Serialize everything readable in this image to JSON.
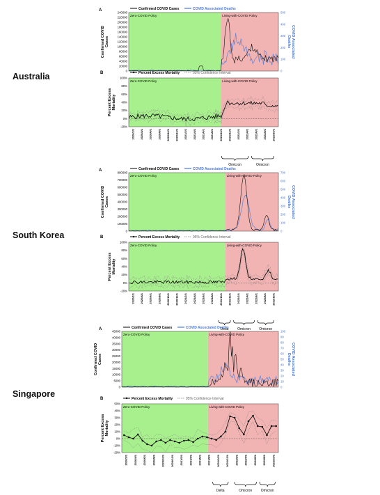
{
  "countries": [
    {
      "name": "Australia",
      "cases_panel": {
        "letter": "A",
        "legend": [
          "Confirmed COVID Cases",
          "COVID Associated Deaths"
        ],
        "ylabel_left": [
          "Confirmed COVID",
          "Cases"
        ],
        "ylabel_right": [
          "COVID Associated",
          "Deaths"
        ],
        "y_ticks_left": [
          "240000",
          "220000",
          "200000",
          "180000",
          "160000",
          "140000",
          "120000",
          "100000",
          "80000",
          "60000",
          "40000",
          "20000",
          "0"
        ],
        "y_ticks_right": [
          "500",
          "400",
          "300",
          "200",
          "100",
          "0"
        ],
        "zero_label": "Zero-COVID Policy",
        "living_label": "Living-with-COVID Policy",
        "ylim_left": [
          0,
          240000
        ],
        "ylim_right": [
          0,
          500
        ]
      },
      "mortality_panel": {
        "letter": "B",
        "legend": [
          "Percent Excess Mortality",
          "95% Confidence Interval"
        ],
        "ylabel": [
          "Percent Excess",
          "Mortality"
        ],
        "y_ticks": [
          "100%",
          "80%",
          "60%",
          "40%",
          "20%",
          "0%",
          "-20%"
        ],
        "zero_label": "Zero-COVID Policy",
        "living_label": "Living-with-COVID Policy",
        "x_ticks": [
          "2020/2/1",
          "2020/4/1",
          "2020/6/1",
          "2020/8/1",
          "2020/10/1",
          "2020/12/1",
          "2021/2/1",
          "2021/4/1",
          "2021/6/1",
          "2021/8/1",
          "2021/10/1",
          "2021/12/1",
          "2022/2/1",
          "2022/4/1",
          "2022/6/1",
          "2022/8/1",
          "2022/10/1"
        ],
        "variants": [
          "Omicron",
          "Omicron"
        ],
        "ylim": [
          -20,
          100
        ]
      }
    },
    {
      "name": "South Korea",
      "cases_panel": {
        "letter": "A",
        "legend": [
          "Confirmed COVID Cases",
          "COVID Associated Deaths"
        ],
        "ylabel_left": [
          "Confirmed COVID",
          "Cases"
        ],
        "ylabel_right": [
          "COVID Associated",
          "Deaths"
        ],
        "y_ticks_left": [
          "800000",
          "700000",
          "600000",
          "500000",
          "400000",
          "300000",
          "200000",
          "100000",
          "0"
        ],
        "y_ticks_right": [
          "700",
          "600",
          "500",
          "400",
          "300",
          "200",
          "100",
          "0"
        ],
        "zero_label": "Zero-COVID Policy",
        "living_label": "Living-with-COVID Policy",
        "ylim_left": [
          0,
          800000
        ],
        "ylim_right": [
          0,
          700
        ]
      },
      "mortality_panel": {
        "letter": "B",
        "legend": [
          "Percent Excess Mortality",
          "95% Confidence Interval"
        ],
        "ylabel": [
          "Percent Excess",
          "Mortality"
        ],
        "y_ticks": [
          "100%",
          "80%",
          "60%",
          "40%",
          "20%",
          "0%",
          "-20%"
        ],
        "zero_label": "Zero-COVID Policy",
        "living_label": "Living-with-COVID Policy",
        "x_ticks": [
          "2020/2/1",
          "2020/4/1",
          "2020/6/1",
          "2020/8/1",
          "2020/10/1",
          "2020/12/1",
          "2021/2/1",
          "2021/4/1",
          "2021/6/1",
          "2021/8/1",
          "2021/10/1",
          "2021/12/1",
          "2022/2/1",
          "2022/4/1",
          "2022/6/1",
          "2022/8/1",
          "2022/10/1"
        ],
        "variants": [
          "Delta",
          "Omicron",
          "Omicron"
        ],
        "ylim": [
          -20,
          100
        ]
      }
    },
    {
      "name": "Singapore",
      "cases_panel": {
        "letter": "A",
        "legend": [
          "Confirmed COVID Cases",
          "COVID Associated Deaths"
        ],
        "ylabel_left": [
          "Confirmed COVID",
          "Cases"
        ],
        "ylabel_right": [
          "COVID Associated",
          "Deaths"
        ],
        "y_ticks_left": [
          "45000",
          "40000",
          "35000",
          "30000",
          "25000",
          "20000",
          "15000",
          "10000",
          "5000",
          "0"
        ],
        "y_ticks_right": [
          "100",
          "90",
          "80",
          "70",
          "60",
          "50",
          "40",
          "30",
          "20",
          "10",
          "0"
        ],
        "zero_label": "Zero-COVID Policy",
        "living_label": "Living-with-COVID Policy",
        "ylim_left": [
          0,
          45000
        ],
        "ylim_right": [
          0,
          100
        ]
      },
      "mortality_panel": {
        "letter": "B",
        "legend": [
          "Percent Excess Mortality",
          "95% Confidence Interval"
        ],
        "ylabel": [
          "Percent Excess",
          "Mortality"
        ],
        "y_ticks": [
          "50%",
          "40%",
          "30%",
          "20%",
          "10%",
          "0%",
          "-10%",
          "-20%"
        ],
        "zero_label": "Zero-COVID Policy",
        "living_label": "Living-with-COVID Policy",
        "x_ticks": [
          "2020/2/1",
          "2020/4/1",
          "2020/6/1",
          "2020/8/1",
          "2020/10/1",
          "2020/12/1",
          "2021/2/1",
          "2021/4/1",
          "2021/6/1",
          "2021/8/1",
          "2021/10/1",
          "2021/12/1",
          "2022/2/1",
          "2022/4/1",
          "2022/6/1",
          "2022/8/1",
          "2022/10/1"
        ],
        "variants": [
          "Delta",
          "Omicron",
          "Omicron"
        ],
        "ylim": [
          -20,
          50
        ]
      }
    }
  ],
  "chart_data": [
    {
      "type": "line",
      "country": "Singapore",
      "metric": "Percent Excess Mortality (monthly, approx.)",
      "x": [
        "2020/1",
        "2020/2",
        "2020/3",
        "2020/4",
        "2020/5",
        "2020/6",
        "2020/7",
        "2020/8",
        "2020/9",
        "2020/10",
        "2020/11",
        "2020/12",
        "2021/1",
        "2021/2",
        "2021/3",
        "2021/4",
        "2021/5",
        "2021/6",
        "2021/7",
        "2021/8",
        "2021/9",
        "2021/10",
        "2021/11",
        "2021/12",
        "2022/1",
        "2022/2",
        "2022/3",
        "2022/4",
        "2022/5",
        "2022/6",
        "2022/7",
        "2022/8",
        "2022/9",
        "2022/10"
      ],
      "values": [
        5,
        2,
        0,
        6,
        -3,
        -8,
        -10,
        -4,
        -2,
        -6,
        -2,
        -4,
        -6,
        -3,
        -2,
        -5,
        0,
        3,
        2,
        0,
        -2,
        3,
        10,
        32,
        30,
        15,
        6,
        25,
        33,
        18,
        17,
        5,
        18,
        18
      ]
    }
  ]
}
